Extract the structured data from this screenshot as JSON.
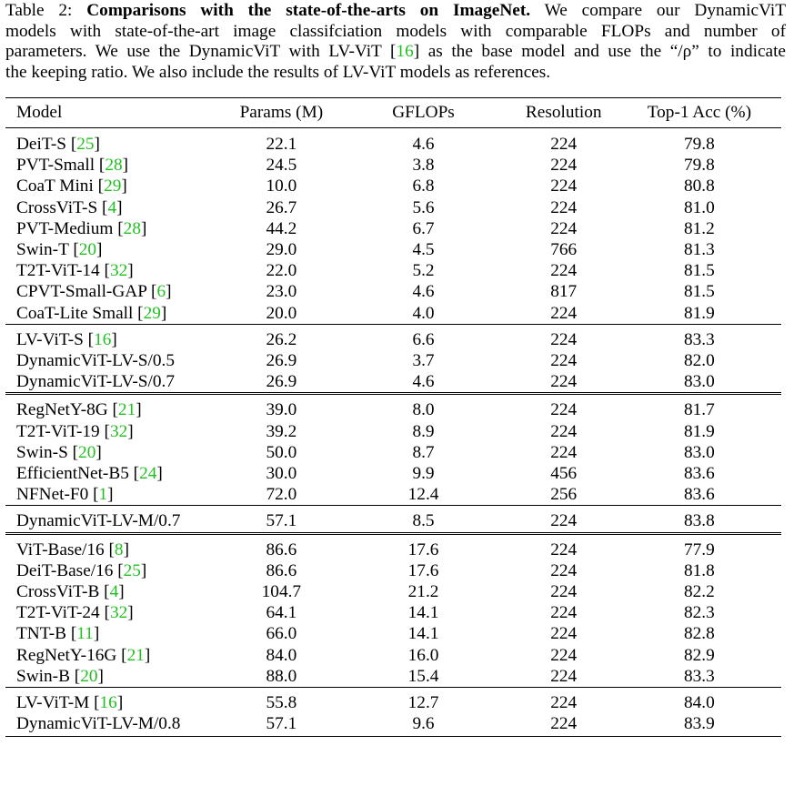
{
  "caption": {
    "label": "Table 2:",
    "bold": "Comparisons with the state-of-the-arts on ImageNet.",
    "lines": [
      "We compare our DynamicViT",
      "models with state-of-the-art image classifciation models with comparable FLOPs and number of",
      "parameters. We use the DynamicViT with LV-ViT [16] as the base model and use the “/ρ” to indicate",
      "the keeping ratio. We also include the results of LV-ViT models as references."
    ]
  },
  "table": {
    "headers": [
      "Model",
      "Params (M)",
      "GFLOPs",
      "Resolution",
      "Top-1 Acc (%)"
    ],
    "groups": [
      {
        "rule": "none",
        "rows": [
          {
            "name": "DeiT-S",
            "ref": "25",
            "cells": [
              "22.1",
              "4.6",
              "224",
              "79.8"
            ]
          },
          {
            "name": "PVT-Small",
            "ref": "28",
            "cells": [
              "24.5",
              "3.8",
              "224",
              "79.8"
            ]
          },
          {
            "name": "CoaT Mini",
            "ref": "29",
            "cells": [
              "10.0",
              "6.8",
              "224",
              "80.8"
            ]
          },
          {
            "name": "CrossViT-S",
            "ref": "4",
            "cells": [
              "26.7",
              "5.6",
              "224",
              "81.0"
            ]
          },
          {
            "name": "PVT-Medium",
            "ref": "28",
            "cells": [
              "44.2",
              "6.7",
              "224",
              "81.2"
            ]
          },
          {
            "name": "Swin-T",
            "ref": "20",
            "cells": [
              "29.0",
              "4.5",
              "766",
              "81.3"
            ]
          },
          {
            "name": "T2T-ViT-14",
            "ref": "32",
            "cells": [
              "22.0",
              "5.2",
              "224",
              "81.5"
            ]
          },
          {
            "name": "CPVT-Small-GAP",
            "ref": "6",
            "cells": [
              "23.0",
              "4.6",
              "817",
              "81.5"
            ]
          },
          {
            "name": "CoaT-Lite Small",
            "ref": "29",
            "cells": [
              "20.0",
              "4.0",
              "224",
              "81.9"
            ]
          }
        ]
      },
      {
        "rule": "single",
        "rows": [
          {
            "name": "LV-ViT-S",
            "ref": "16",
            "cells": [
              "26.2",
              "6.6",
              "224",
              "83.3"
            ]
          },
          {
            "name": "DynamicViT-LV-S/0.5",
            "ref": "",
            "cells": [
              "26.9",
              "3.7",
              "224",
              "82.0"
            ]
          },
          {
            "name": "DynamicViT-LV-S/0.7",
            "ref": "",
            "cells": [
              "26.9",
              "4.6",
              "224",
              "83.0"
            ]
          }
        ]
      },
      {
        "rule": "double",
        "rows": [
          {
            "name": "RegNetY-8G",
            "ref": "21",
            "cells": [
              "39.0",
              "8.0",
              "224",
              "81.7"
            ]
          },
          {
            "name": "T2T-ViT-19",
            "ref": "32",
            "cells": [
              "39.2",
              "8.9",
              "224",
              "81.9"
            ]
          },
          {
            "name": "Swin-S",
            "ref": "20",
            "cells": [
              "50.0",
              "8.7",
              "224",
              "83.0"
            ]
          },
          {
            "name": "EfficientNet-B5",
            "ref": "24",
            "cells": [
              "30.0",
              "9.9",
              "456",
              "83.6"
            ]
          },
          {
            "name": "NFNet-F0",
            "ref": "1",
            "cells": [
              "72.0",
              "12.4",
              "256",
              "83.6"
            ]
          }
        ]
      },
      {
        "rule": "single",
        "rows": [
          {
            "name": "DynamicViT-LV-M/0.7",
            "ref": "",
            "cells": [
              "57.1",
              "8.5",
              "224",
              "83.8"
            ]
          }
        ]
      },
      {
        "rule": "double",
        "rows": [
          {
            "name": "ViT-Base/16",
            "ref": "8",
            "cells": [
              "86.6",
              "17.6",
              "224",
              "77.9"
            ]
          },
          {
            "name": "DeiT-Base/16",
            "ref": "25",
            "cells": [
              "86.6",
              "17.6",
              "224",
              "81.8"
            ]
          },
          {
            "name": "CrossViT-B",
            "ref": "4",
            "cells": [
              "104.7",
              "21.2",
              "224",
              "82.2"
            ]
          },
          {
            "name": "T2T-ViT-24",
            "ref": "32",
            "cells": [
              "64.1",
              "14.1",
              "224",
              "82.3"
            ]
          },
          {
            "name": "TNT-B",
            "ref": "11",
            "cells": [
              "66.0",
              "14.1",
              "224",
              "82.8"
            ]
          },
          {
            "name": "RegNetY-16G",
            "ref": "21",
            "cells": [
              "84.0",
              "16.0",
              "224",
              "82.9"
            ]
          },
          {
            "name": "Swin-B",
            "ref": "20",
            "cells": [
              "88.0",
              "15.4",
              "224",
              "83.3"
            ]
          }
        ]
      },
      {
        "rule": "single",
        "rows": [
          {
            "name": "LV-ViT-M",
            "ref": "16",
            "cells": [
              "55.8",
              "12.7",
              "224",
              "84.0"
            ]
          },
          {
            "name": "DynamicViT-LV-M/0.8",
            "ref": "",
            "cells": [
              "57.1",
              "9.6",
              "224",
              "83.9"
            ]
          }
        ]
      }
    ]
  }
}
